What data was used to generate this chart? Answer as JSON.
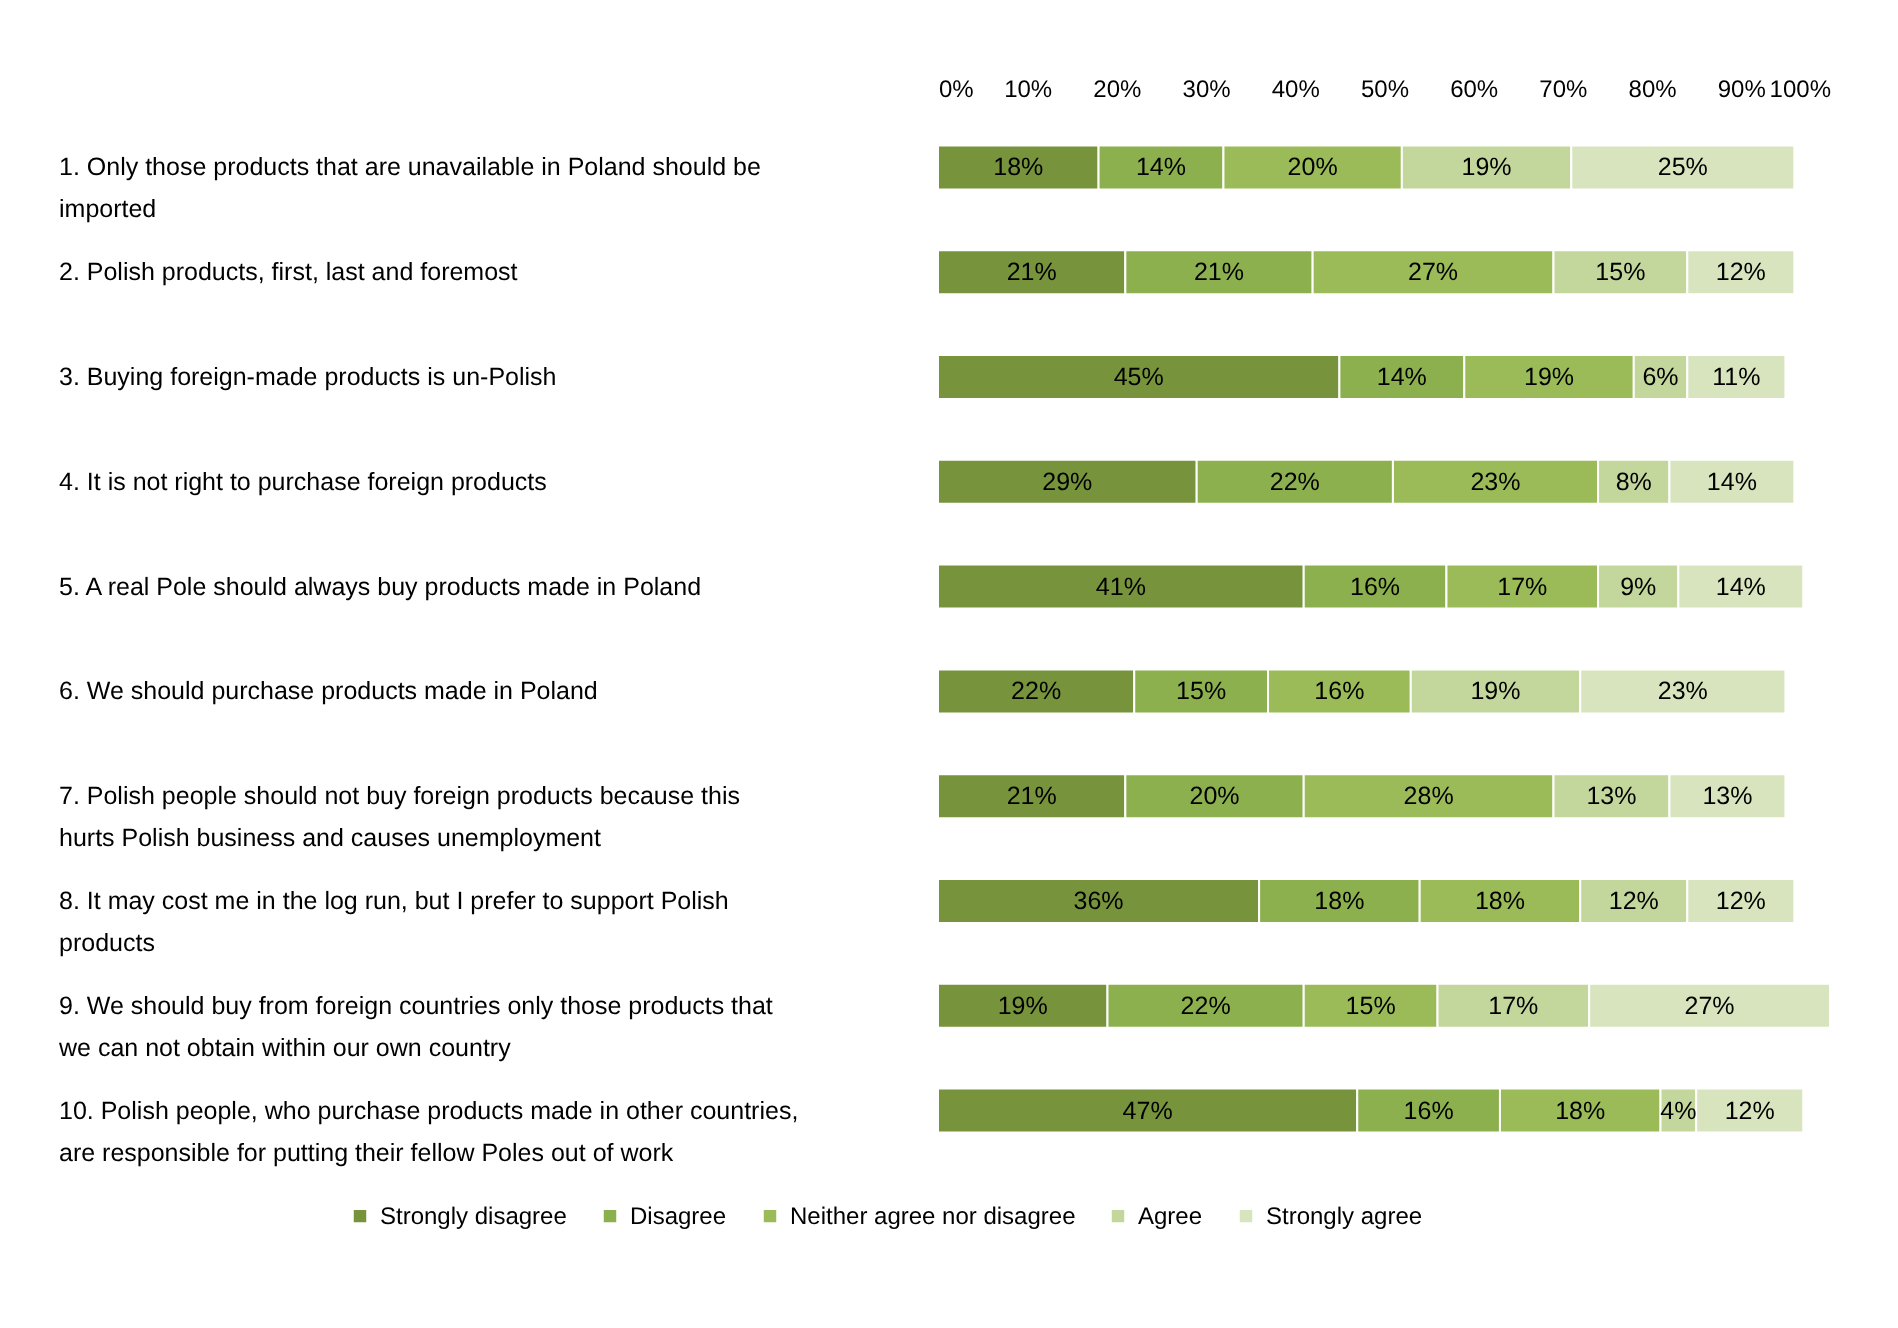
{
  "chart_data": {
    "type": "bar",
    "orientation": "horizontal",
    "stacked": true,
    "categories": [
      "1. Only those products that are unavailable in Poland should be imported",
      "2. Polish products, first, last and foremost",
      "3. Buying foreign-made products is un-Polish",
      "4. It is not right to purchase foreign products",
      "5. A real Pole should always buy products made in Poland",
      "6. We should purchase products made in Poland",
      "7. Polish people should not buy foreign products because this hurts Polish business and causes unemployment",
      "8. It may cost me in the log run, but I prefer to support Polish products",
      "9. We should buy from foreign countries only those products that we can not obtain within our own country",
      "10. Polish people, who purchase products made in other countries, are responsible for putting their fellow Poles out of work"
    ],
    "series": [
      {
        "name": "Strongly disagree",
        "color": "#77933c",
        "values": [
          18,
          21,
          45,
          29,
          41,
          22,
          21,
          36,
          19,
          47
        ],
        "value_labels": [
          "18%",
          "21%",
          "45%",
          "29%",
          "41%",
          "22%",
          "21%",
          "36%",
          "19%",
          "47%"
        ]
      },
      {
        "name": "Disagree",
        "color": "#8db04f",
        "values": [
          14,
          21,
          14,
          22,
          16,
          15,
          20,
          18,
          22,
          16
        ],
        "value_labels": [
          "14%",
          "21%",
          "14%",
          "22%",
          "16%",
          "15%",
          "20%",
          "18%",
          "22%",
          "16%"
        ]
      },
      {
        "name": "Neither agree nor disagree",
        "color": "#9bbb59",
        "values": [
          20,
          27,
          19,
          23,
          17,
          16,
          28,
          18,
          15,
          18
        ],
        "value_labels": [
          "20%",
          "27%",
          "19%",
          "23%",
          "17%",
          "16%",
          "28%",
          "18%",
          "15%",
          "18%"
        ]
      },
      {
        "name": "Agree",
        "color": "#c3d69b",
        "values": [
          19,
          15,
          6,
          8,
          9,
          19,
          13,
          12,
          17,
          4
        ],
        "value_labels": [
          "19%",
          "15%",
          "6%",
          "8%",
          "9%",
          "19%",
          "13%",
          "12%",
          "17%",
          "4%"
        ]
      },
      {
        "name": "Strongly agree",
        "color": "#d7e4bd",
        "values": [
          25,
          12,
          11,
          14,
          14,
          23,
          13,
          12,
          27,
          12
        ],
        "value_labels": [
          "25%",
          "12%",
          "11%",
          "14%",
          "14%",
          "23%",
          "13%",
          "12%",
          "27%",
          "12%"
        ]
      }
    ],
    "xlim": [
      0,
      100
    ],
    "xticks": [
      {
        "value": 0,
        "label": "0%"
      },
      {
        "value": 10,
        "label": "10%"
      },
      {
        "value": 20,
        "label": "20%"
      },
      {
        "value": 30,
        "label": "30%"
      },
      {
        "value": 40,
        "label": "40%"
      },
      {
        "value": 50,
        "label": "50%"
      },
      {
        "value": 60,
        "label": "60%"
      },
      {
        "value": 70,
        "label": "70%"
      },
      {
        "value": 80,
        "label": "80%"
      },
      {
        "value": 90,
        "label": "90%"
      },
      {
        "value": 100,
        "label": "100%"
      }
    ],
    "grid": false,
    "legend": "bottom"
  }
}
